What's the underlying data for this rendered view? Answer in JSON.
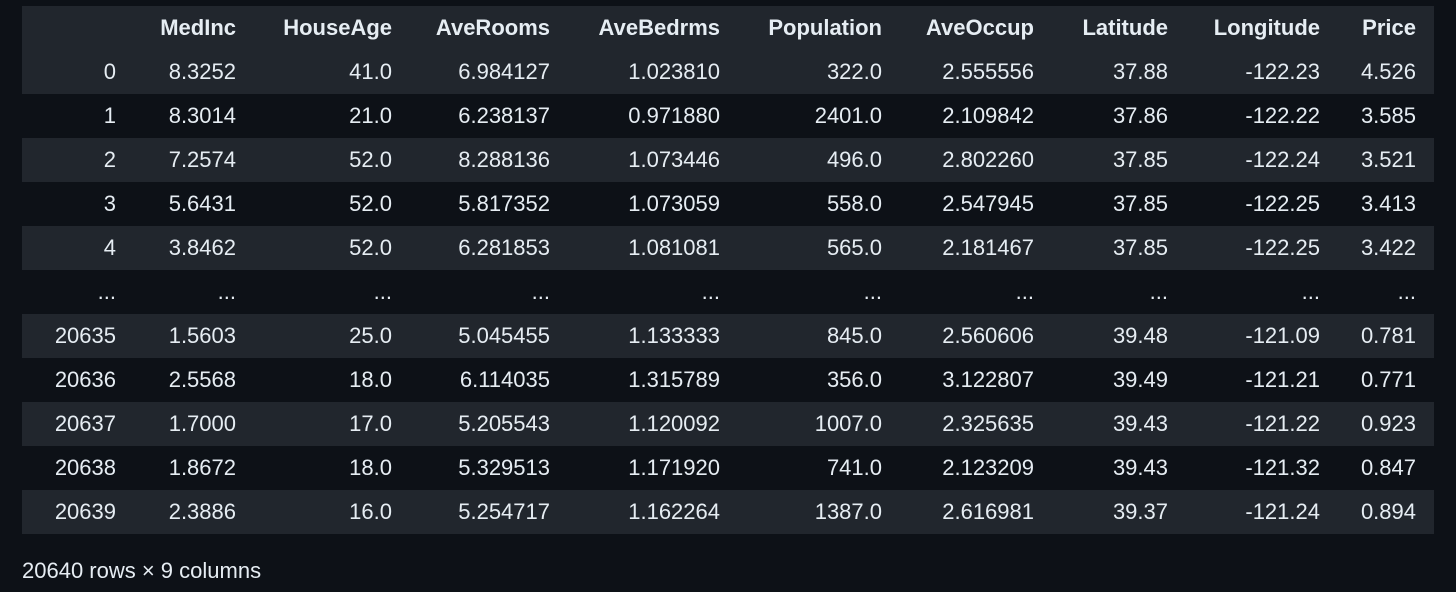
{
  "table": {
    "index_header": "",
    "columns": [
      "MedInc",
      "HouseAge",
      "AveRooms",
      "AveBedrms",
      "Population",
      "AveOccup",
      "Latitude",
      "Longitude",
      "Price"
    ],
    "rows": [
      {
        "index": "0",
        "cells": [
          "8.3252",
          "41.0",
          "6.984127",
          "1.023810",
          "322.0",
          "2.555556",
          "37.88",
          "-122.23",
          "4.526"
        ]
      },
      {
        "index": "1",
        "cells": [
          "8.3014",
          "21.0",
          "6.238137",
          "0.971880",
          "2401.0",
          "2.109842",
          "37.86",
          "-122.22",
          "3.585"
        ]
      },
      {
        "index": "2",
        "cells": [
          "7.2574",
          "52.0",
          "8.288136",
          "1.073446",
          "496.0",
          "2.802260",
          "37.85",
          "-122.24",
          "3.521"
        ]
      },
      {
        "index": "3",
        "cells": [
          "5.6431",
          "52.0",
          "5.817352",
          "1.073059",
          "558.0",
          "2.547945",
          "37.85",
          "-122.25",
          "3.413"
        ]
      },
      {
        "index": "4",
        "cells": [
          "3.8462",
          "52.0",
          "6.281853",
          "1.081081",
          "565.0",
          "2.181467",
          "37.85",
          "-122.25",
          "3.422"
        ]
      },
      {
        "index": "...",
        "cells": [
          "...",
          "...",
          "...",
          "...",
          "...",
          "...",
          "...",
          "...",
          "..."
        ]
      },
      {
        "index": "20635",
        "cells": [
          "1.5603",
          "25.0",
          "5.045455",
          "1.133333",
          "845.0",
          "2.560606",
          "39.48",
          "-121.09",
          "0.781"
        ]
      },
      {
        "index": "20636",
        "cells": [
          "2.5568",
          "18.0",
          "6.114035",
          "1.315789",
          "356.0",
          "3.122807",
          "39.49",
          "-121.21",
          "0.771"
        ]
      },
      {
        "index": "20637",
        "cells": [
          "1.7000",
          "17.0",
          "5.205543",
          "1.120092",
          "1007.0",
          "2.325635",
          "39.43",
          "-121.22",
          "0.923"
        ]
      },
      {
        "index": "20638",
        "cells": [
          "1.8672",
          "18.0",
          "5.329513",
          "1.171920",
          "741.0",
          "2.123209",
          "39.43",
          "-121.32",
          "0.847"
        ]
      },
      {
        "index": "20639",
        "cells": [
          "2.3886",
          "16.0",
          "5.254717",
          "1.162264",
          "1387.0",
          "2.616981",
          "39.37",
          "-121.24",
          "0.894"
        ]
      }
    ]
  },
  "summary": "20640 rows × 9 columns",
  "colors": {
    "background": "#0d1117",
    "stripe": "#21262d",
    "text": "#e6edf3"
  }
}
